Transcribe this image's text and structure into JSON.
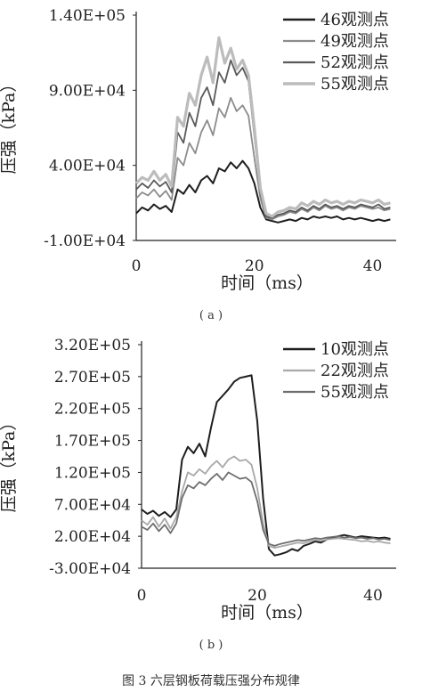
{
  "caption": "图 3 六层钢板荷载压强分布规律",
  "chart_data": [
    {
      "type": "line",
      "panel_label": "( a )",
      "ylabel": "压强（kPa）",
      "xlabel": "时间（ms）",
      "xlim": [
        0,
        44
      ],
      "ylim": [
        -10000,
        140000
      ],
      "xticks": [
        "0",
        "20",
        "40"
      ],
      "yticks": [
        "1.40E+05",
        "9.00E+04",
        "4.00E+04",
        "-1.00E+04"
      ],
      "ytick_values": [
        140000,
        90000,
        40000,
        -10000
      ],
      "legend_position": "top-right",
      "x": [
        0,
        1,
        2,
        3,
        4,
        5,
        6,
        7,
        8,
        9,
        10,
        11,
        12,
        13,
        14,
        15,
        16,
        17,
        18,
        19,
        20,
        21,
        22,
        23,
        24,
        25,
        26,
        27,
        28,
        29,
        30,
        31,
        32,
        33,
        34,
        35,
        36,
        37,
        38,
        39,
        40,
        41,
        42,
        43
      ],
      "series": [
        {
          "name": "46观测点",
          "color": "#1e1e1e",
          "width": 2.0,
          "values": [
            8000,
            12000,
            10000,
            14000,
            11000,
            13000,
            9000,
            24000,
            21000,
            27000,
            22000,
            30000,
            33000,
            28000,
            38000,
            36000,
            42000,
            38000,
            43000,
            38000,
            28000,
            12000,
            4000,
            3000,
            2000,
            3000,
            4000,
            3000,
            5000,
            4000,
            6000,
            5000,
            6000,
            5000,
            6000,
            4000,
            5000,
            4000,
            5000,
            4000,
            3000,
            4000,
            3000,
            4000
          ]
        },
        {
          "name": "49观测点",
          "color": "#8c8c8c",
          "width": 1.8,
          "values": [
            18000,
            22000,
            20000,
            24000,
            19000,
            23000,
            17000,
            45000,
            40000,
            55000,
            48000,
            62000,
            70000,
            60000,
            78000,
            72000,
            85000,
            76000,
            80000,
            73000,
            45000,
            18000,
            5000,
            4000,
            6000,
            7000,
            9000,
            8000,
            11000,
            9000,
            12000,
            10000,
            13000,
            11000,
            12000,
            10000,
            12000,
            11000,
            13000,
            12000,
            11000,
            12000,
            10000,
            11000
          ]
        },
        {
          "name": "52观测点",
          "color": "#5a5a5a",
          "width": 1.8,
          "values": [
            24000,
            28000,
            25000,
            30000,
            26000,
            29000,
            22000,
            62000,
            55000,
            75000,
            66000,
            85000,
            92000,
            80000,
            102000,
            95000,
            110000,
            100000,
            105000,
            96000,
            60000,
            22000,
            6000,
            5000,
            7000,
            8000,
            10000,
            9000,
            12000,
            10000,
            13000,
            11000,
            14000,
            12000,
            13000,
            11000,
            13000,
            12000,
            14000,
            13000,
            12000,
            14000,
            11000,
            12000
          ]
        },
        {
          "name": "55观测点",
          "color": "#bcbcbc",
          "width": 3.2,
          "values": [
            28000,
            32000,
            30000,
            36000,
            30000,
            34000,
            26000,
            72000,
            66000,
            88000,
            80000,
            100000,
            112000,
            95000,
            125000,
            108000,
            118000,
            104000,
            110000,
            100000,
            65000,
            25000,
            8000,
            6000,
            9000,
            10000,
            12000,
            11000,
            15000,
            13000,
            16000,
            14000,
            17000,
            15000,
            16000,
            14000,
            16000,
            15000,
            17000,
            16000,
            15000,
            17000,
            14000,
            15000
          ]
        }
      ]
    },
    {
      "type": "line",
      "panel_label": "( b )",
      "ylabel": "压强（kPa）",
      "xlabel": "时间（ms）",
      "xlim": [
        0,
        44
      ],
      "ylim": [
        -30000,
        320000
      ],
      "xticks": [
        "0",
        "20",
        "40"
      ],
      "yticks": [
        "3.20E+05",
        "2.70E+05",
        "2.20E+05",
        "1.70E+05",
        "1.20E+05",
        "7.00E+04",
        "2.00E+04",
        "-3.00E+04"
      ],
      "ytick_values": [
        320000,
        270000,
        220000,
        170000,
        120000,
        70000,
        20000,
        -30000
      ],
      "legend_position": "top-right",
      "x": [
        0,
        1,
        2,
        3,
        4,
        5,
        6,
        7,
        8,
        9,
        10,
        11,
        12,
        13,
        14,
        15,
        16,
        17,
        18,
        19,
        20,
        21,
        22,
        23,
        24,
        25,
        26,
        27,
        28,
        29,
        30,
        31,
        32,
        33,
        34,
        35,
        36,
        37,
        38,
        39,
        40,
        41,
        42,
        43
      ],
      "series": [
        {
          "name": "10观测点",
          "color": "#1e1e1e",
          "width": 2.0,
          "values": [
            62000,
            55000,
            60000,
            52000,
            58000,
            50000,
            62000,
            140000,
            160000,
            150000,
            165000,
            145000,
            190000,
            230000,
            240000,
            250000,
            262000,
            268000,
            270000,
            272000,
            200000,
            80000,
            0,
            -10000,
            -8000,
            -5000,
            0,
            -3000,
            5000,
            8000,
            12000,
            10000,
            15000,
            18000,
            20000,
            22000,
            20000,
            18000,
            20000,
            19000,
            18000,
            17000,
            18000,
            16000
          ]
        },
        {
          "name": "22观测点",
          "color": "#a8a8a8",
          "width": 1.8,
          "values": [
            45000,
            38000,
            50000,
            35000,
            48000,
            32000,
            50000,
            90000,
            120000,
            115000,
            125000,
            118000,
            130000,
            138000,
            128000,
            140000,
            145000,
            138000,
            140000,
            132000,
            95000,
            40000,
            5000,
            2000,
            4000,
            6000,
            8000,
            10000,
            9000,
            12000,
            14000,
            13000,
            15000,
            16000,
            17000,
            16000,
            15000,
            14000,
            12000,
            13000,
            11000,
            12000,
            10000,
            9000
          ]
        },
        {
          "name": "55观测点",
          "color": "#6e6e6e",
          "width": 1.8,
          "values": [
            35000,
            30000,
            40000,
            28000,
            38000,
            25000,
            40000,
            80000,
            100000,
            95000,
            105000,
            100000,
            110000,
            118000,
            108000,
            120000,
            115000,
            110000,
            112000,
            105000,
            75000,
            30000,
            8000,
            5000,
            8000,
            10000,
            12000,
            14000,
            13000,
            15000,
            17000,
            16000,
            18000,
            19000,
            20000,
            18000,
            19000,
            17000,
            18000,
            16000,
            17000,
            15000,
            16000,
            14000
          ]
        }
      ]
    }
  ]
}
